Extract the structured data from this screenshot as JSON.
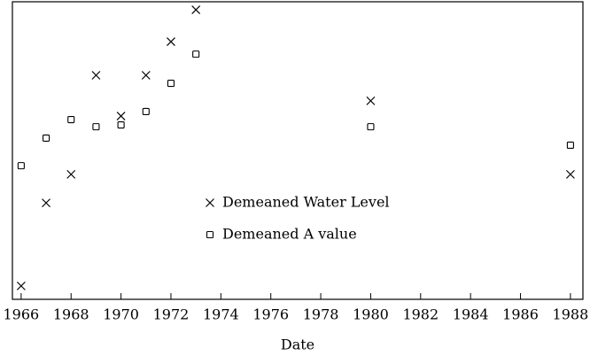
{
  "chart_data": {
    "type": "scatter",
    "x_label": "Date",
    "x": [
      1966,
      1967,
      1968,
      1969,
      1970,
      1971,
      1972,
      1973,
      1980,
      1988
    ],
    "series": [
      {
        "name": "Demeaned Water Level",
        "marker": "x",
        "color": "#000000",
        "values": [
          4.5,
          32.4,
          42.0,
          75.3,
          61.6,
          75.3,
          86.6,
          97.3,
          66.7,
          42.0
        ]
      },
      {
        "name": "Demeaned A value",
        "marker": "square",
        "color": "#000000",
        "values": [
          44.9,
          54.2,
          60.4,
          58.0,
          58.6,
          63.1,
          72.6,
          82.4,
          58.0,
          51.8
        ]
      }
    ],
    "xlim": [
      1965.65,
      1988.5
    ],
    "xticks": [
      1966,
      1968,
      1970,
      1972,
      1974,
      1976,
      1978,
      1980,
      1982,
      1984,
      1986,
      1988
    ],
    "ylim": [
      0,
      100
    ],
    "legend": "center"
  }
}
